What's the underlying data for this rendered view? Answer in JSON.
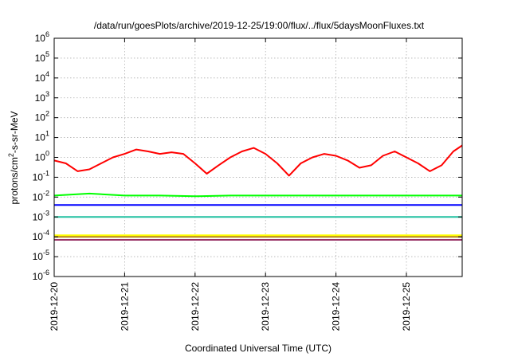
{
  "chart_data": {
    "type": "line",
    "title": "/data/run/goesPlots/archive/2019-12-25/19:00/flux/../flux/5daysMoonFluxes.txt",
    "xlabel": "Coordinated Universal Time (UTC)",
    "ylabel": {
      "base": "protons/cm",
      "sup": "2",
      "rest": "-s-sr-MeV"
    },
    "y_scale": "log",
    "ylim": [
      1e-06,
      1000000.0
    ],
    "y_ticks": [
      {
        "value": 1e-06,
        "base": "10",
        "exp": "-6"
      },
      {
        "value": 1e-05,
        "base": "10",
        "exp": "-5"
      },
      {
        "value": 0.0001,
        "base": "10",
        "exp": "-4"
      },
      {
        "value": 0.001,
        "base": "10",
        "exp": "-3"
      },
      {
        "value": 0.01,
        "base": "10",
        "exp": "-2"
      },
      {
        "value": 0.1,
        "base": "10",
        "exp": "-1"
      },
      {
        "value": 1,
        "base": "10",
        "exp": "0"
      },
      {
        "value": 10,
        "base": "10",
        "exp": "1"
      },
      {
        "value": 100,
        "base": "10",
        "exp": "2"
      },
      {
        "value": 1000.0,
        "base": "10",
        "exp": "3"
      },
      {
        "value": 10000.0,
        "base": "10",
        "exp": "4"
      },
      {
        "value": 100000.0,
        "base": "10",
        "exp": "5"
      },
      {
        "value": 1000000.0,
        "base": "10",
        "exp": "6"
      }
    ],
    "xlim": [
      "2019-12-20",
      "2019-12-25T19:00"
    ],
    "x_ticks": [
      "2019-12-20",
      "2019-12-21",
      "2019-12-22",
      "2019-12-23",
      "2019-12-24",
      "2019-12-25"
    ],
    "grid": true,
    "series": [
      {
        "color": "#ff0000",
        "x": [
          "2019-12-20T00:00",
          "2019-12-20T04:00",
          "2019-12-20T08:00",
          "2019-12-20T12:00",
          "2019-12-20T16:00",
          "2019-12-20T20:00",
          "2019-12-21T00:00",
          "2019-12-21T04:00",
          "2019-12-21T08:00",
          "2019-12-21T12:00",
          "2019-12-21T16:00",
          "2019-12-21T20:00",
          "2019-12-22T00:00",
          "2019-12-22T04:00",
          "2019-12-22T08:00",
          "2019-12-22T12:00",
          "2019-12-22T16:00",
          "2019-12-22T20:00",
          "2019-12-23T00:00",
          "2019-12-23T04:00",
          "2019-12-23T08:00",
          "2019-12-23T12:00",
          "2019-12-23T16:00",
          "2019-12-23T20:00",
          "2019-12-24T00:00",
          "2019-12-24T04:00",
          "2019-12-24T08:00",
          "2019-12-24T12:00",
          "2019-12-24T16:00",
          "2019-12-24T20:00",
          "2019-12-25T00:00",
          "2019-12-25T04:00",
          "2019-12-25T08:00",
          "2019-12-25T12:00",
          "2019-12-25T16:00",
          "2019-12-25T19:00"
        ],
        "values": [
          0.7,
          0.5,
          0.2,
          0.25,
          0.5,
          1.0,
          1.5,
          2.5,
          2.0,
          1.5,
          1.8,
          1.5,
          0.5,
          0.15,
          0.4,
          1.0,
          2.0,
          3.0,
          1.5,
          0.5,
          0.12,
          0.5,
          1.0,
          1.5,
          1.2,
          0.7,
          0.3,
          0.4,
          1.2,
          2.0,
          1.0,
          0.5,
          0.2,
          0.4,
          2.0,
          4.0
        ]
      },
      {
        "color": "#00ff00",
        "x": [
          "2019-12-20T00:00",
          "2019-12-20T12:00",
          "2019-12-21T00:00",
          "2019-12-21T12:00",
          "2019-12-22T00:00",
          "2019-12-22T12:00",
          "2019-12-23T00:00",
          "2019-12-23T12:00",
          "2019-12-24T00:00",
          "2019-12-24T12:00",
          "2019-12-25T00:00",
          "2019-12-25T12:00",
          "2019-12-25T19:00"
        ],
        "values": [
          0.012,
          0.015,
          0.012,
          0.012,
          0.011,
          0.012,
          0.012,
          0.012,
          0.012,
          0.012,
          0.012,
          0.012,
          0.012
        ]
      },
      {
        "color": "#0000ff",
        "x": [
          "2019-12-20T00:00",
          "2019-12-20T12:00",
          "2019-12-21T00:00",
          "2019-12-21T12:00",
          "2019-12-22T00:00",
          "2019-12-22T12:00",
          "2019-12-23T00:00",
          "2019-12-23T12:00",
          "2019-12-24T00:00",
          "2019-12-24T12:00",
          "2019-12-25T00:00",
          "2019-12-25T12:00",
          "2019-12-25T19:00"
        ],
        "values": [
          0.004,
          0.004,
          0.004,
          0.004,
          0.004,
          0.004,
          0.004,
          0.004,
          0.004,
          0.004,
          0.004,
          0.004,
          0.004
        ]
      },
      {
        "color": "#20c0a0",
        "x": [
          "2019-12-20T00:00",
          "2019-12-20T12:00",
          "2019-12-21T00:00",
          "2019-12-21T12:00",
          "2019-12-22T00:00",
          "2019-12-22T12:00",
          "2019-12-23T00:00",
          "2019-12-23T12:00",
          "2019-12-24T00:00",
          "2019-12-24T12:00",
          "2019-12-25T00:00",
          "2019-12-25T12:00",
          "2019-12-25T19:00"
        ],
        "values": [
          0.001,
          0.001,
          0.001,
          0.001,
          0.001,
          0.001,
          0.001,
          0.001,
          0.001,
          0.001,
          0.001,
          0.001,
          0.001
        ]
      },
      {
        "color": "#ffff00",
        "x": [
          "2019-12-20T00:00",
          "2019-12-20T12:00",
          "2019-12-21T00:00",
          "2019-12-21T12:00",
          "2019-12-22T00:00",
          "2019-12-22T12:00",
          "2019-12-23T00:00",
          "2019-12-23T12:00",
          "2019-12-24T00:00",
          "2019-12-24T12:00",
          "2019-12-25T00:00",
          "2019-12-25T12:00",
          "2019-12-25T19:00"
        ],
        "values": [
          0.00012,
          0.00012,
          0.00012,
          0.00012,
          0.00012,
          0.00012,
          0.00012,
          0.00012,
          0.00012,
          0.00012,
          0.00012,
          0.00012,
          0.00012
        ]
      },
      {
        "color": "#b8860b",
        "x": [
          "2019-12-20T00:00",
          "2019-12-20T12:00",
          "2019-12-21T00:00",
          "2019-12-21T12:00",
          "2019-12-22T00:00",
          "2019-12-22T12:00",
          "2019-12-23T00:00",
          "2019-12-23T12:00",
          "2019-12-24T00:00",
          "2019-12-24T12:00",
          "2019-12-25T00:00",
          "2019-12-25T12:00",
          "2019-12-25T19:00"
        ],
        "values": [
          0.0001,
          0.0001,
          0.0001,
          0.0001,
          0.0001,
          0.0001,
          0.0001,
          0.0001,
          0.0001,
          0.0001,
          0.0001,
          0.0001,
          0.0001
        ]
      },
      {
        "color": "#993366",
        "x": [
          "2019-12-20T00:00",
          "2019-12-20T12:00",
          "2019-12-21T00:00",
          "2019-12-21T12:00",
          "2019-12-22T00:00",
          "2019-12-22T12:00",
          "2019-12-23T00:00",
          "2019-12-23T12:00",
          "2019-12-24T00:00",
          "2019-12-24T12:00",
          "2019-12-25T00:00",
          "2019-12-25T12:00",
          "2019-12-25T19:00"
        ],
        "values": [
          7e-05,
          7e-05,
          7e-05,
          7e-05,
          7e-05,
          7e-05,
          7e-05,
          7e-05,
          7e-05,
          7e-05,
          7e-05,
          7e-05,
          7e-05
        ]
      }
    ]
  }
}
